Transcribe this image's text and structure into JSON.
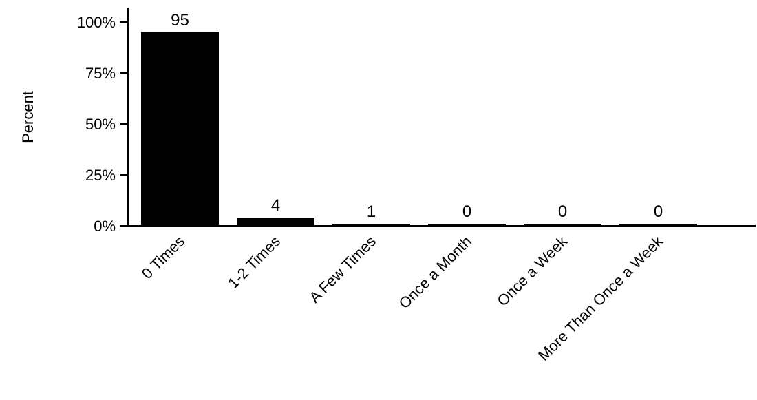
{
  "chart_data": {
    "type": "bar",
    "title": "",
    "xlabel": "",
    "ylabel": "Percent",
    "categories": [
      "0 Times",
      "1-2 Times",
      "A Few Times",
      "Once a Month",
      "Once a Week",
      "More Than Once a Week"
    ],
    "values": [
      95,
      4,
      1,
      0,
      0,
      0
    ],
    "data_labels": [
      "95",
      "4",
      "1",
      "0",
      "0",
      "0"
    ],
    "ylim": [
      0,
      100
    ],
    "yticks": [
      0,
      25,
      50,
      75,
      100
    ],
    "ytick_labels": [
      "0%",
      "25%",
      "50%",
      "75%",
      "100%"
    ],
    "grid": false,
    "legend": "none",
    "bar_color": "#000000"
  }
}
